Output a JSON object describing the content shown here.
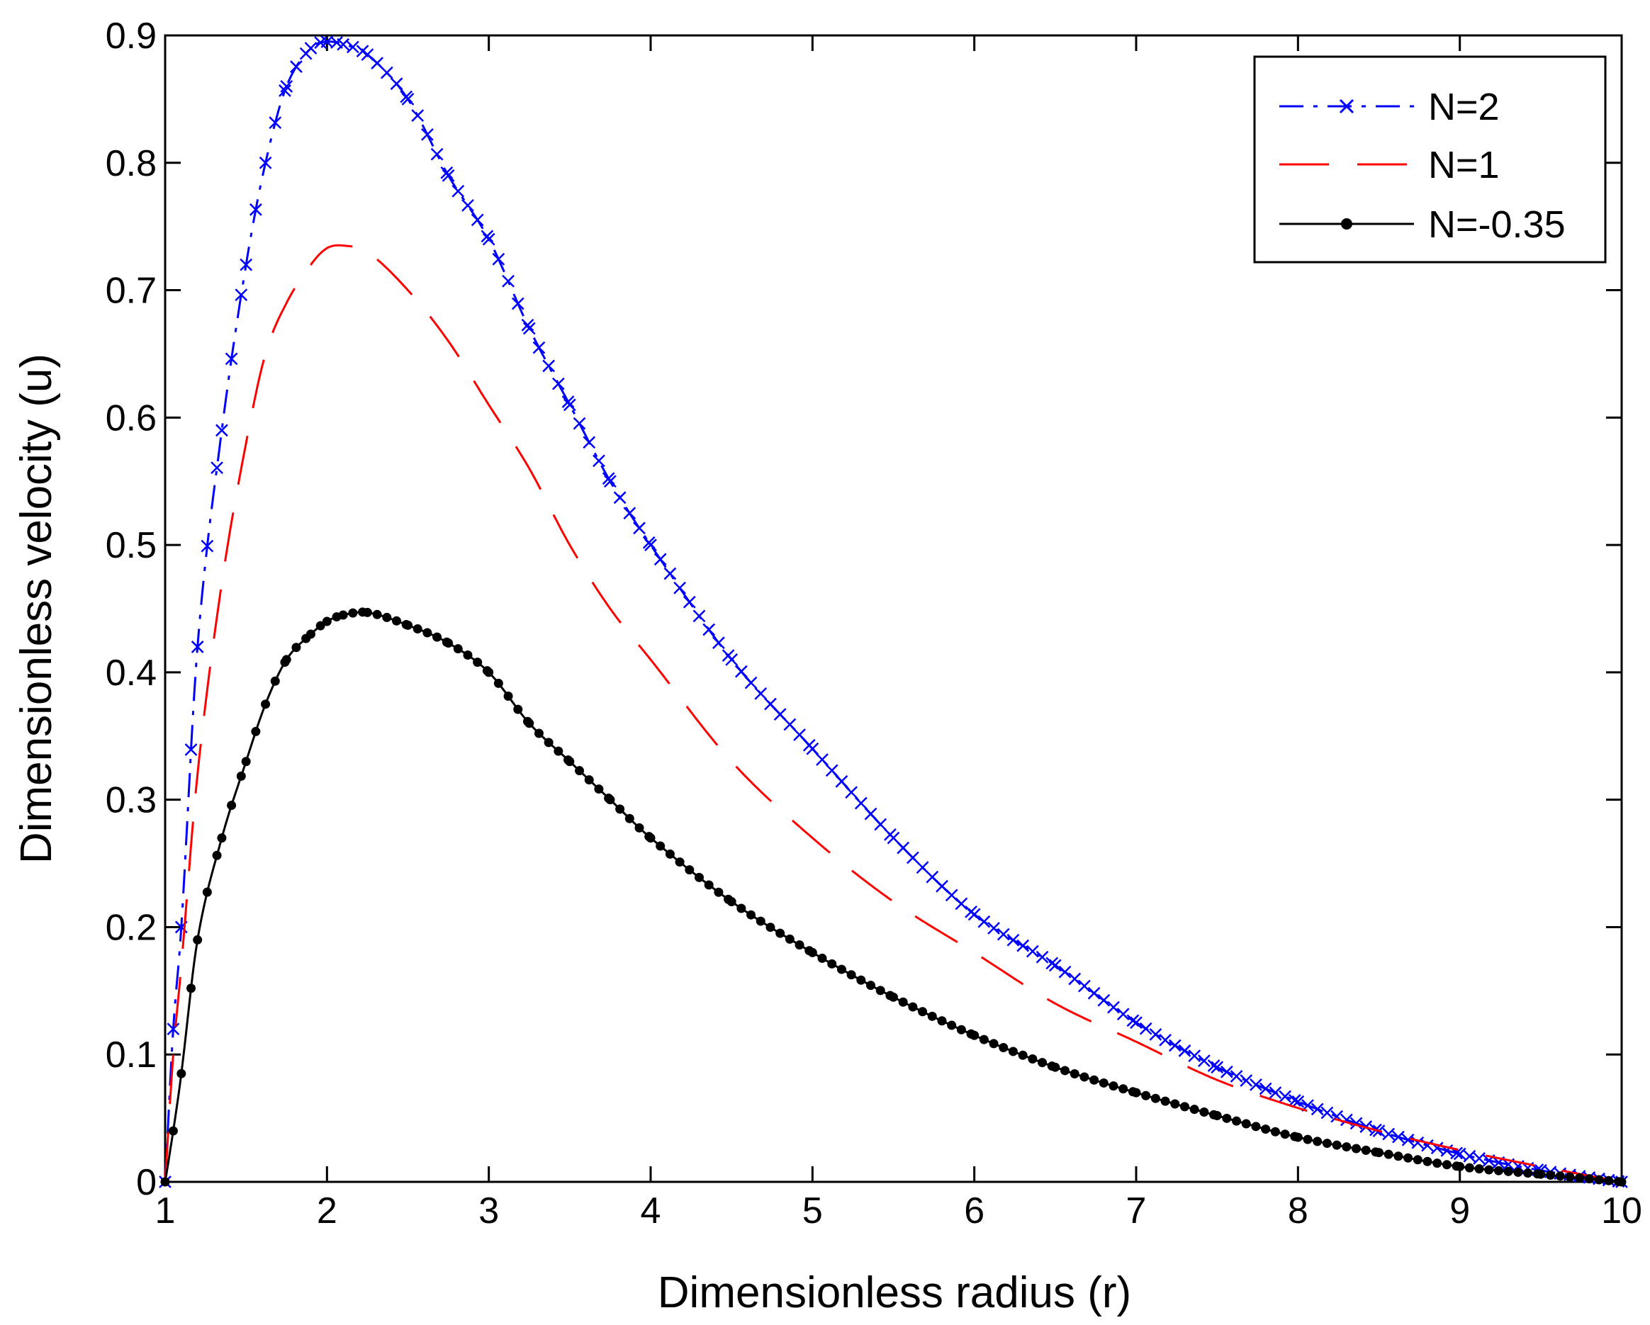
{
  "chart_data": {
    "type": "line",
    "title": "",
    "xlabel": "Dimensionless radius (r)",
    "ylabel": "Dimensionless velocity (u)",
    "xlim": [
      1,
      10
    ],
    "ylim": [
      0,
      0.9
    ],
    "xticks": [
      "1",
      "2",
      "3",
      "4",
      "5",
      "6",
      "7",
      "8",
      "9",
      "10"
    ],
    "yticks": [
      "0",
      "0.1",
      "0.2",
      "0.3",
      "0.4",
      "0.5",
      "0.6",
      "0.7",
      "0.8",
      "0.9"
    ],
    "grid": false,
    "legend_position": "top-right",
    "series": [
      {
        "name": "N=2",
        "color": "#0000ff",
        "style": "dash-dot with x markers",
        "x": [
          1.0,
          1.05,
          1.1,
          1.2,
          1.35,
          1.5,
          1.62,
          1.75,
          1.9,
          2.0,
          2.1,
          2.25,
          2.5,
          2.75,
          3.0,
          3.25,
          3.5,
          3.75,
          4.0,
          4.5,
          5.0,
          5.5,
          6.0,
          6.5,
          7.0,
          7.5,
          8.0,
          8.5,
          9.0,
          9.5,
          10.0
        ],
        "y": [
          0.0,
          0.12,
          0.2,
          0.42,
          0.59,
          0.72,
          0.8,
          0.86,
          0.89,
          0.895,
          0.893,
          0.885,
          0.85,
          0.79,
          0.74,
          0.67,
          0.61,
          0.55,
          0.5,
          0.41,
          0.34,
          0.27,
          0.21,
          0.17,
          0.125,
          0.09,
          0.063,
          0.04,
          0.022,
          0.009,
          0.0
        ]
      },
      {
        "name": "N=1",
        "color": "#ff0000",
        "style": "long dash",
        "x": [
          1.0,
          1.05,
          1.1,
          1.2,
          1.35,
          1.5,
          1.62,
          1.75,
          1.9,
          2.0,
          2.1,
          2.25,
          2.5,
          2.75,
          3.0,
          3.25,
          3.5,
          3.75,
          4.0,
          4.5,
          5.0,
          5.5,
          6.0,
          6.5,
          7.0,
          7.5,
          8.0,
          8.5,
          9.0,
          9.5,
          10.0
        ],
        "y": [
          0.0,
          0.1,
          0.17,
          0.32,
          0.47,
          0.58,
          0.65,
          0.69,
          0.72,
          0.733,
          0.735,
          0.73,
          0.7,
          0.66,
          0.61,
          0.56,
          0.5,
          0.45,
          0.41,
          0.33,
          0.27,
          0.22,
          0.18,
          0.14,
          0.11,
          0.08,
          0.058,
          0.04,
          0.025,
          0.012,
          0.0
        ]
      },
      {
        "name": "N=-0.35",
        "color": "#000000",
        "style": "solid with * markers",
        "x": [
          1.0,
          1.05,
          1.1,
          1.2,
          1.35,
          1.5,
          1.62,
          1.75,
          1.9,
          2.0,
          2.1,
          2.25,
          2.5,
          2.75,
          3.0,
          3.25,
          3.5,
          3.75,
          4.0,
          4.5,
          5.0,
          5.5,
          6.0,
          6.5,
          7.0,
          7.5,
          8.0,
          8.5,
          9.0,
          9.5,
          10.0
        ],
        "y": [
          0.0,
          0.04,
          0.085,
          0.19,
          0.27,
          0.33,
          0.375,
          0.41,
          0.43,
          0.44,
          0.445,
          0.447,
          0.437,
          0.423,
          0.4,
          0.36,
          0.33,
          0.3,
          0.27,
          0.22,
          0.18,
          0.145,
          0.115,
          0.09,
          0.07,
          0.052,
          0.035,
          0.023,
          0.012,
          0.006,
          0.0
        ]
      }
    ]
  }
}
